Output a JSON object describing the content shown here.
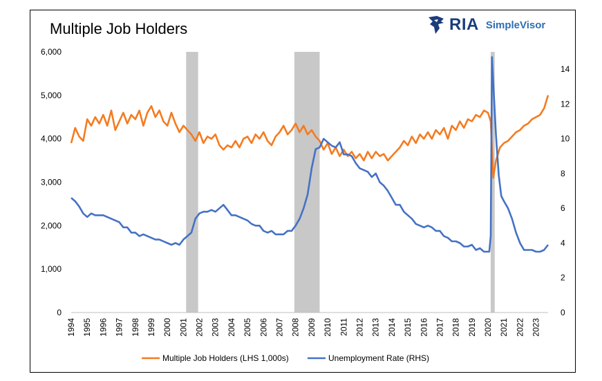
{
  "chart_data": {
    "type": "line",
    "title": "Multiple Job Holders",
    "logo_text": "RIA",
    "logo_sub": "SimpleVisor",
    "brand_colors": {
      "ria": "#1b3d7a",
      "simplevisor": "#2e6db4"
    },
    "x_range": [
      1994.0,
      2023.75
    ],
    "x_tick_labels": [
      "1994",
      "1995",
      "1996",
      "1997",
      "1998",
      "1999",
      "2000",
      "2001",
      "2002",
      "2003",
      "2004",
      "2005",
      "2006",
      "2007",
      "2008",
      "2009",
      "2010",
      "2011",
      "2012",
      "2013",
      "2014",
      "2015",
      "2016",
      "2017",
      "2018",
      "2019",
      "2020",
      "2021",
      "2022",
      "2023"
    ],
    "y_left": {
      "range": [
        0,
        6000
      ],
      "ticks": [
        "0",
        "1,000",
        "2,000",
        "3,000",
        "4,000",
        "5,000",
        "6,000"
      ],
      "tick_values": [
        0,
        1000,
        2000,
        3000,
        4000,
        5000,
        6000
      ]
    },
    "y_right": {
      "range": [
        0,
        15
      ],
      "ticks": [
        "0",
        "2",
        "4",
        "6",
        "8",
        "10",
        "12",
        "14"
      ],
      "tick_values": [
        0,
        2,
        4,
        6,
        8,
        10,
        12,
        14
      ]
    },
    "recessions": [
      [
        2001.17,
        2001.92
      ],
      [
        2007.92,
        2009.5
      ],
      [
        2020.17,
        2020.42
      ]
    ],
    "recession_color": "#c8c8c8",
    "grid": false,
    "legend_placement": "bottom",
    "series": [
      {
        "name": "Multiple Job Holders (LHS 1,000s)",
        "axis": "left",
        "color": "#f47b20",
        "points": [
          [
            1994.0,
            3900
          ],
          [
            1994.25,
            4250
          ],
          [
            1994.5,
            4050
          ],
          [
            1994.75,
            3950
          ],
          [
            1995.0,
            4450
          ],
          [
            1995.25,
            4300
          ],
          [
            1995.5,
            4500
          ],
          [
            1995.75,
            4350
          ],
          [
            1996.0,
            4550
          ],
          [
            1996.25,
            4300
          ],
          [
            1996.5,
            4650
          ],
          [
            1996.75,
            4200
          ],
          [
            1997.0,
            4400
          ],
          [
            1997.25,
            4600
          ],
          [
            1997.5,
            4350
          ],
          [
            1997.75,
            4550
          ],
          [
            1998.0,
            4450
          ],
          [
            1998.25,
            4650
          ],
          [
            1998.5,
            4300
          ],
          [
            1998.75,
            4600
          ],
          [
            1999.0,
            4750
          ],
          [
            1999.25,
            4500
          ],
          [
            1999.5,
            4650
          ],
          [
            1999.75,
            4400
          ],
          [
            2000.0,
            4300
          ],
          [
            2000.25,
            4600
          ],
          [
            2000.5,
            4350
          ],
          [
            2000.75,
            4150
          ],
          [
            2001.0,
            4300
          ],
          [
            2001.25,
            4200
          ],
          [
            2001.5,
            4100
          ],
          [
            2001.75,
            3950
          ],
          [
            2002.0,
            4150
          ],
          [
            2002.25,
            3900
          ],
          [
            2002.5,
            4050
          ],
          [
            2002.75,
            4000
          ],
          [
            2003.0,
            4100
          ],
          [
            2003.25,
            3850
          ],
          [
            2003.5,
            3750
          ],
          [
            2003.75,
            3850
          ],
          [
            2004.0,
            3800
          ],
          [
            2004.25,
            3950
          ],
          [
            2004.5,
            3800
          ],
          [
            2004.75,
            4000
          ],
          [
            2005.0,
            4050
          ],
          [
            2005.25,
            3900
          ],
          [
            2005.5,
            4100
          ],
          [
            2005.75,
            4000
          ],
          [
            2006.0,
            4150
          ],
          [
            2006.25,
            3950
          ],
          [
            2006.5,
            3850
          ],
          [
            2006.75,
            4050
          ],
          [
            2007.0,
            4150
          ],
          [
            2007.25,
            4300
          ],
          [
            2007.5,
            4100
          ],
          [
            2007.75,
            4200
          ],
          [
            2008.0,
            4350
          ],
          [
            2008.25,
            4150
          ],
          [
            2008.5,
            4300
          ],
          [
            2008.75,
            4100
          ],
          [
            2009.0,
            4200
          ],
          [
            2009.25,
            4050
          ],
          [
            2009.5,
            3950
          ],
          [
            2009.75,
            3750
          ],
          [
            2010.0,
            3900
          ],
          [
            2010.25,
            3650
          ],
          [
            2010.5,
            3800
          ],
          [
            2010.75,
            3600
          ],
          [
            2011.0,
            3750
          ],
          [
            2011.25,
            3600
          ],
          [
            2011.5,
            3700
          ],
          [
            2011.75,
            3550
          ],
          [
            2012.0,
            3650
          ],
          [
            2012.25,
            3500
          ],
          [
            2012.5,
            3700
          ],
          [
            2012.75,
            3550
          ],
          [
            2013.0,
            3700
          ],
          [
            2013.25,
            3600
          ],
          [
            2013.5,
            3650
          ],
          [
            2013.75,
            3500
          ],
          [
            2014.0,
            3600
          ],
          [
            2014.25,
            3700
          ],
          [
            2014.5,
            3800
          ],
          [
            2014.75,
            3950
          ],
          [
            2015.0,
            3850
          ],
          [
            2015.25,
            4050
          ],
          [
            2015.5,
            3900
          ],
          [
            2015.75,
            4100
          ],
          [
            2016.0,
            4000
          ],
          [
            2016.25,
            4150
          ],
          [
            2016.5,
            4000
          ],
          [
            2016.75,
            4200
          ],
          [
            2017.0,
            4100
          ],
          [
            2017.25,
            4250
          ],
          [
            2017.5,
            4000
          ],
          [
            2017.75,
            4300
          ],
          [
            2018.0,
            4200
          ],
          [
            2018.25,
            4400
          ],
          [
            2018.5,
            4250
          ],
          [
            2018.75,
            4450
          ],
          [
            2019.0,
            4400
          ],
          [
            2019.25,
            4550
          ],
          [
            2019.5,
            4500
          ],
          [
            2019.75,
            4650
          ],
          [
            2020.0,
            4600
          ],
          [
            2020.17,
            4400
          ],
          [
            2020.33,
            3100
          ],
          [
            2020.5,
            3500
          ],
          [
            2020.75,
            3800
          ],
          [
            2021.0,
            3900
          ],
          [
            2021.25,
            3950
          ],
          [
            2021.5,
            4050
          ],
          [
            2021.75,
            4150
          ],
          [
            2022.0,
            4200
          ],
          [
            2022.25,
            4300
          ],
          [
            2022.5,
            4350
          ],
          [
            2022.75,
            4450
          ],
          [
            2023.0,
            4500
          ],
          [
            2023.25,
            4550
          ],
          [
            2023.5,
            4700
          ],
          [
            2023.75,
            5000
          ]
        ]
      },
      {
        "name": "Unemployment Rate (RHS)",
        "axis": "right",
        "color": "#4472c4",
        "points": [
          [
            1994.0,
            6.6
          ],
          [
            1994.25,
            6.4
          ],
          [
            1994.5,
            6.1
          ],
          [
            1994.75,
            5.7
          ],
          [
            1995.0,
            5.5
          ],
          [
            1995.25,
            5.7
          ],
          [
            1995.5,
            5.6
          ],
          [
            1995.75,
            5.6
          ],
          [
            1996.0,
            5.6
          ],
          [
            1996.25,
            5.5
          ],
          [
            1996.5,
            5.4
          ],
          [
            1996.75,
            5.3
          ],
          [
            1997.0,
            5.2
          ],
          [
            1997.25,
            4.9
          ],
          [
            1997.5,
            4.9
          ],
          [
            1997.75,
            4.6
          ],
          [
            1998.0,
            4.6
          ],
          [
            1998.25,
            4.4
          ],
          [
            1998.5,
            4.5
          ],
          [
            1998.75,
            4.4
          ],
          [
            1999.0,
            4.3
          ],
          [
            1999.25,
            4.2
          ],
          [
            1999.5,
            4.2
          ],
          [
            1999.75,
            4.1
          ],
          [
            2000.0,
            4.0
          ],
          [
            2000.25,
            3.9
          ],
          [
            2000.5,
            4.0
          ],
          [
            2000.75,
            3.9
          ],
          [
            2001.0,
            4.2
          ],
          [
            2001.25,
            4.4
          ],
          [
            2001.5,
            4.6
          ],
          [
            2001.75,
            5.4
          ],
          [
            2002.0,
            5.7
          ],
          [
            2002.25,
            5.8
          ],
          [
            2002.5,
            5.8
          ],
          [
            2002.75,
            5.9
          ],
          [
            2003.0,
            5.8
          ],
          [
            2003.25,
            6.0
          ],
          [
            2003.5,
            6.2
          ],
          [
            2003.75,
            5.9
          ],
          [
            2004.0,
            5.6
          ],
          [
            2004.25,
            5.6
          ],
          [
            2004.5,
            5.5
          ],
          [
            2004.75,
            5.4
          ],
          [
            2005.0,
            5.3
          ],
          [
            2005.25,
            5.1
          ],
          [
            2005.5,
            5.0
          ],
          [
            2005.75,
            5.0
          ],
          [
            2006.0,
            4.7
          ],
          [
            2006.25,
            4.6
          ],
          [
            2006.5,
            4.7
          ],
          [
            2006.75,
            4.5
          ],
          [
            2007.0,
            4.5
          ],
          [
            2007.25,
            4.5
          ],
          [
            2007.5,
            4.7
          ],
          [
            2007.75,
            4.7
          ],
          [
            2008.0,
            5.0
          ],
          [
            2008.25,
            5.4
          ],
          [
            2008.5,
            6.0
          ],
          [
            2008.75,
            6.8
          ],
          [
            2009.0,
            8.3
          ],
          [
            2009.25,
            9.4
          ],
          [
            2009.5,
            9.5
          ],
          [
            2009.75,
            10.0
          ],
          [
            2010.0,
            9.8
          ],
          [
            2010.25,
            9.6
          ],
          [
            2010.5,
            9.5
          ],
          [
            2010.75,
            9.8
          ],
          [
            2011.0,
            9.1
          ],
          [
            2011.25,
            9.1
          ],
          [
            2011.5,
            9.0
          ],
          [
            2011.75,
            8.6
          ],
          [
            2012.0,
            8.3
          ],
          [
            2012.25,
            8.2
          ],
          [
            2012.5,
            8.1
          ],
          [
            2012.75,
            7.8
          ],
          [
            2013.0,
            8.0
          ],
          [
            2013.25,
            7.5
          ],
          [
            2013.5,
            7.3
          ],
          [
            2013.75,
            7.0
          ],
          [
            2014.0,
            6.6
          ],
          [
            2014.25,
            6.2
          ],
          [
            2014.5,
            6.2
          ],
          [
            2014.75,
            5.8
          ],
          [
            2015.0,
            5.6
          ],
          [
            2015.25,
            5.4
          ],
          [
            2015.5,
            5.1
          ],
          [
            2015.75,
            5.0
          ],
          [
            2016.0,
            4.9
          ],
          [
            2016.25,
            5.0
          ],
          [
            2016.5,
            4.9
          ],
          [
            2016.75,
            4.7
          ],
          [
            2017.0,
            4.7
          ],
          [
            2017.25,
            4.4
          ],
          [
            2017.5,
            4.3
          ],
          [
            2017.75,
            4.1
          ],
          [
            2018.0,
            4.1
          ],
          [
            2018.25,
            4.0
          ],
          [
            2018.5,
            3.8
          ],
          [
            2018.75,
            3.8
          ],
          [
            2019.0,
            3.9
          ],
          [
            2019.25,
            3.6
          ],
          [
            2019.5,
            3.7
          ],
          [
            2019.75,
            3.5
          ],
          [
            2020.0,
            3.5
          ],
          [
            2020.08,
            3.5
          ],
          [
            2020.17,
            4.4
          ],
          [
            2020.25,
            14.7
          ],
          [
            2020.33,
            13.2
          ],
          [
            2020.5,
            10.2
          ],
          [
            2020.67,
            7.9
          ],
          [
            2020.83,
            6.7
          ],
          [
            2021.0,
            6.4
          ],
          [
            2021.25,
            6.0
          ],
          [
            2021.5,
            5.4
          ],
          [
            2021.75,
            4.6
          ],
          [
            2022.0,
            4.0
          ],
          [
            2022.25,
            3.6
          ],
          [
            2022.5,
            3.6
          ],
          [
            2022.75,
            3.6
          ],
          [
            2023.0,
            3.5
          ],
          [
            2023.25,
            3.5
          ],
          [
            2023.5,
            3.6
          ],
          [
            2023.75,
            3.9
          ]
        ]
      }
    ]
  }
}
